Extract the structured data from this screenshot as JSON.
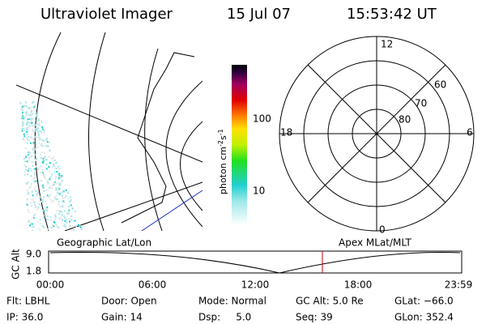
{
  "header": {
    "instrument": "Ultraviolet Imager",
    "date": "15 Jul 07",
    "time": "15:53:42 UT"
  },
  "colorbar": {
    "label": "photon cm",
    "exp1": "-2",
    "mid": "s",
    "exp2": "-1",
    "ticks": [
      "100",
      "10"
    ]
  },
  "polar": {
    "mlt_labels": [
      "12",
      "6",
      "0",
      "18"
    ],
    "mlat_labels": [
      "60",
      "70",
      "80"
    ]
  },
  "timeline": {
    "left_title": "Geographic Lat/Lon",
    "right_title": "Apex MLat/MLT",
    "y_label": "GC Alt",
    "y_ticks": [
      "9.0",
      "1.8"
    ],
    "x_ticks": [
      "00:00",
      "06:00",
      "12:00",
      "18:00",
      "23:59"
    ]
  },
  "info": {
    "rows": [
      [
        "Flt: LBHL",
        "Door: Open",
        "Mode: Normal",
        "GC Alt: 5.0 Re",
        "GLat: −66.0"
      ],
      [
        "IP: 36.0",
        "Gain: 14",
        "Dsp:     5.0",
        "Seq: 39",
        "GLon: 352.4"
      ]
    ]
  }
}
